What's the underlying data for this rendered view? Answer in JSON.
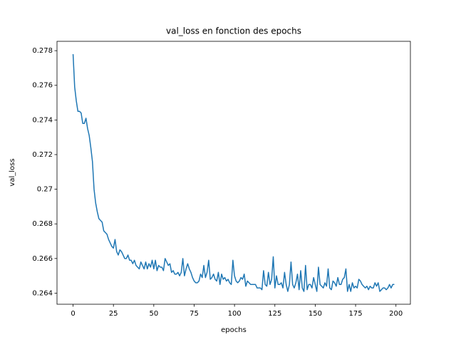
{
  "chart_data": {
    "type": "line",
    "title": "val_loss en fonction des epochs",
    "xlabel": "epochs",
    "ylabel": "val_loss",
    "color": "#1f77b4",
    "x": [
      0,
      1,
      2,
      3,
      4,
      5,
      6,
      7,
      8,
      9,
      10,
      11,
      12,
      13,
      14,
      15,
      16,
      17,
      18,
      19,
      20,
      21,
      22,
      23,
      24,
      25,
      26,
      27,
      28,
      29,
      30,
      31,
      32,
      33,
      34,
      35,
      36,
      37,
      38,
      39,
      40,
      41,
      42,
      43,
      44,
      45,
      46,
      47,
      48,
      49,
      50,
      51,
      52,
      53,
      54,
      55,
      56,
      57,
      58,
      59,
      60,
      61,
      62,
      63,
      64,
      65,
      66,
      67,
      68,
      69,
      70,
      71,
      72,
      73,
      74,
      75,
      76,
      77,
      78,
      79,
      80,
      81,
      82,
      83,
      84,
      85,
      86,
      87,
      88,
      89,
      90,
      91,
      92,
      93,
      94,
      95,
      96,
      97,
      98,
      99,
      100,
      101,
      102,
      103,
      104,
      105,
      106,
      107,
      108,
      109,
      110,
      111,
      112,
      113,
      114,
      115,
      116,
      117,
      118,
      119,
      120,
      121,
      122,
      123,
      124,
      125,
      126,
      127,
      128,
      129,
      130,
      131,
      132,
      133,
      134,
      135,
      136,
      137,
      138,
      139,
      140,
      141,
      142,
      143,
      144,
      145,
      146,
      147,
      148,
      149,
      150,
      151,
      152,
      153,
      154,
      155,
      156,
      157,
      158,
      159,
      160,
      161,
      162,
      163,
      164,
      165,
      166,
      167,
      168,
      169,
      170,
      171,
      172,
      173,
      174,
      175,
      176,
      177,
      178,
      179,
      180,
      181,
      182,
      183,
      184,
      185,
      186,
      187,
      188,
      189,
      190,
      191,
      192,
      193,
      194,
      195,
      196,
      197,
      198,
      199
    ],
    "values": [
      0.2778,
      0.2759,
      0.2751,
      0.2745,
      0.2745,
      0.2744,
      0.2738,
      0.2738,
      0.2741,
      0.2735,
      0.2731,
      0.2724,
      0.2716,
      0.27,
      0.2692,
      0.2687,
      0.2683,
      0.2682,
      0.2681,
      0.2676,
      0.2675,
      0.2674,
      0.2671,
      0.2669,
      0.2667,
      0.2666,
      0.2671,
      0.2664,
      0.2662,
      0.2665,
      0.2664,
      0.2662,
      0.266,
      0.266,
      0.2662,
      0.2659,
      0.2659,
      0.2657,
      0.2659,
      0.2656,
      0.2655,
      0.2654,
      0.2658,
      0.2656,
      0.2654,
      0.2658,
      0.2654,
      0.2657,
      0.2655,
      0.2659,
      0.2654,
      0.2659,
      0.2653,
      0.2656,
      0.2655,
      0.2655,
      0.2653,
      0.266,
      0.2658,
      0.2656,
      0.2657,
      0.2652,
      0.2653,
      0.2651,
      0.2651,
      0.2652,
      0.265,
      0.2652,
      0.266,
      0.265,
      0.2654,
      0.2657,
      0.2654,
      0.2652,
      0.2649,
      0.2647,
      0.2646,
      0.2646,
      0.2647,
      0.2651,
      0.2649,
      0.2656,
      0.2649,
      0.2652,
      0.2659,
      0.2648,
      0.2649,
      0.2651,
      0.2648,
      0.2647,
      0.2652,
      0.2645,
      0.2651,
      0.2648,
      0.2649,
      0.2647,
      0.2648,
      0.2646,
      0.2645,
      0.2659,
      0.265,
      0.2647,
      0.2646,
      0.2647,
      0.2649,
      0.2648,
      0.2651,
      0.2644,
      0.2647,
      0.2646,
      0.2645,
      0.2645,
      0.2645,
      0.2645,
      0.2643,
      0.2643,
      0.2643,
      0.2642,
      0.2653,
      0.2645,
      0.2644,
      0.2652,
      0.2645,
      0.2648,
      0.2661,
      0.2643,
      0.265,
      0.2645,
      0.2645,
      0.2646,
      0.2643,
      0.2652,
      0.2645,
      0.2641,
      0.2645,
      0.2658,
      0.2645,
      0.2643,
      0.2646,
      0.2651,
      0.2642,
      0.2653,
      0.2643,
      0.2641,
      0.2656,
      0.2642,
      0.2645,
      0.2645,
      0.2643,
      0.2649,
      0.2645,
      0.2641,
      0.2655,
      0.2645,
      0.2644,
      0.2643,
      0.2646,
      0.2644,
      0.2654,
      0.2643,
      0.2642,
      0.2647,
      0.2646,
      0.2644,
      0.2649,
      0.2645,
      0.2645,
      0.2648,
      0.2649,
      0.2654,
      0.2641,
      0.2645,
      0.2641,
      0.2646,
      0.2643,
      0.2644,
      0.2643,
      0.2648,
      0.2647,
      0.2645,
      0.2644,
      0.2643,
      0.2644,
      0.2642,
      0.2644,
      0.2643,
      0.2643,
      0.2646,
      0.2644,
      0.2646,
      0.2641,
      0.2642,
      0.2643,
      0.2643,
      0.2642,
      0.2643,
      0.2645,
      0.2643,
      0.2645,
      0.2645
    ],
    "xlim": [
      -9.95,
      208.95
    ],
    "xticks": [
      0,
      25,
      50,
      75,
      100,
      125,
      150,
      175,
      200
    ],
    "ylim": [
      0.26336,
      0.27854
    ],
    "yticks": [
      0.264,
      0.266,
      0.268,
      0.27,
      0.272,
      0.274,
      0.276,
      0.278
    ]
  }
}
